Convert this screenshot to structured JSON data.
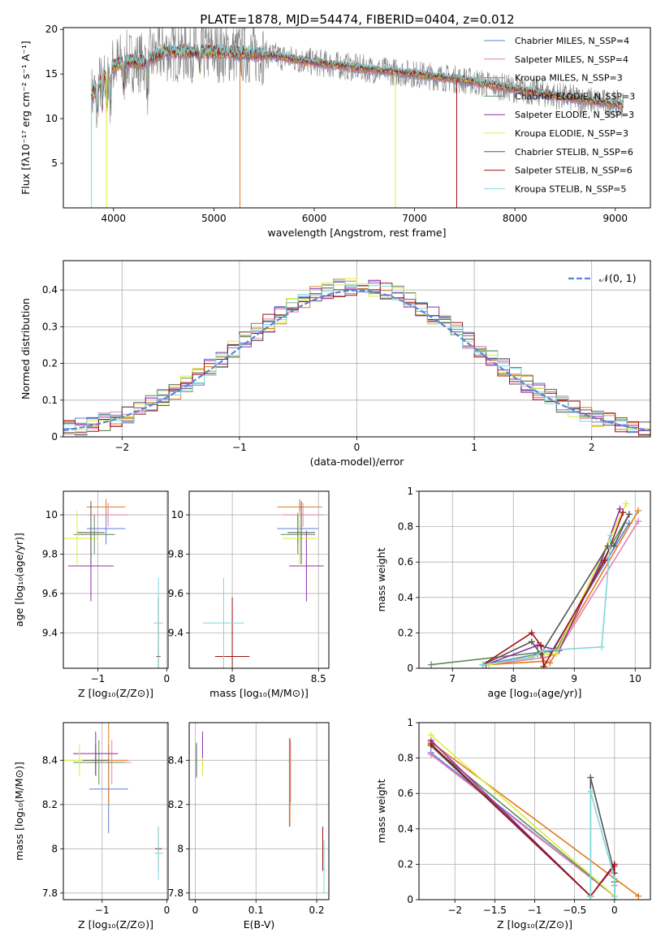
{
  "title": "PLATE=1878, MJD=54474, FIBERID=0404, z=0.012",
  "colors": [
    "#5b7fd6",
    "#e87fb0",
    "#e07a1f",
    "#5f8a5f",
    "#8e2ea8",
    "#dcec3a",
    "#555555",
    "#a01010",
    "#7fd8d8"
  ],
  "chart_data": [
    {
      "id": "spectrum",
      "type": "line",
      "xlabel": "wavelength [Angstrom, rest frame]",
      "ylabel": "Flux [fλ10⁻¹⁷ erg cm⁻² s⁻¹ A⁻¹]",
      "xlim": [
        3500,
        9350
      ],
      "ylim": [
        0,
        20.2
      ],
      "xticks": [
        4000,
        5000,
        6000,
        7000,
        8000,
        9000
      ],
      "yticks": [
        5,
        10,
        15,
        20
      ],
      "legend_position": "upper-right",
      "legend": [
        "Chabrier MILES, N_SSP=4",
        "Salpeter MILES, N_SSP=4",
        "Kroupa MILES, N_SSP=3",
        "Chabrier ELODIE, N_SSP=3",
        "Salpeter ELODIE, N_SSP=3",
        "Kroupa ELODIE, N_SSP=3",
        "Chabrier STELIB, N_SSP=6",
        "Salpeter STELIB, N_SSP=6",
        "Kroupa STELIB, N_SSP=5"
      ],
      "data_trend": {
        "x": [
          3780,
          3950,
          4100,
          4300,
          4500,
          5000,
          5500,
          6000,
          6500,
          7000,
          7500,
          8000,
          8500,
          9080
        ],
        "y": [
          12.5,
          15.5,
          16.5,
          16.3,
          17.5,
          17.5,
          17.2,
          16.3,
          15.6,
          15,
          14.3,
          13.3,
          12.4,
          11.5
        ]
      }
    },
    {
      "id": "residuals",
      "type": "histogram",
      "xlabel": "(data-model)/error",
      "ylabel": "Normed distribution",
      "xlim": [
        -2.5,
        2.5
      ],
      "ylim": [
        0,
        0.48
      ],
      "xticks": [
        -2,
        -1,
        0,
        1,
        2
      ],
      "yticks": [
        0.0,
        0.1,
        0.2,
        0.3,
        0.4
      ],
      "legend": "𝒩(0, 1)",
      "legend_position": "upper-right",
      "grid": true
    },
    {
      "id": "age_vs_Z",
      "type": "errorbar",
      "xlabel": "Z [log₁₀(Z/Z⊙)]",
      "ylabel": "age  [log₁₀(age/yr)]",
      "xlim": [
        -1.5,
        0.02
      ],
      "ylim": [
        9.22,
        10.12
      ],
      "xticks": [
        -1,
        0
      ],
      "yticks": [
        9.4,
        9.6,
        9.8,
        10.0
      ],
      "points": [
        {
          "x": -0.88,
          "y": 9.93,
          "xerr": 0.28,
          "yerr": 0.08
        },
        {
          "x": -0.85,
          "y": 10.0,
          "xerr": 0.28,
          "yerr": 0.06
        },
        {
          "x": -0.88,
          "y": 10.04,
          "xerr": 0.28,
          "yerr": 0.04
        },
        {
          "x": -1.05,
          "y": 9.9,
          "xerr": 0.3,
          "yerr": 0.1
        },
        {
          "x": -1.1,
          "y": 9.74,
          "xerr": 0.33,
          "yerr": 0.18
        },
        {
          "x": -1.3,
          "y": 9.88,
          "xerr": 0.3,
          "yerr": 0.14
        },
        {
          "x": -1.1,
          "y": 9.91,
          "xerr": 0.2,
          "yerr": 0.16
        },
        {
          "x": -0.12,
          "y": 9.28,
          "xerr": 0.03,
          "yerr": 0.3
        },
        {
          "x": -0.12,
          "y": 9.45,
          "xerr": 0.07,
          "yerr": 0.23
        }
      ]
    },
    {
      "id": "age_vs_mass",
      "type": "errorbar",
      "xlabel": "mass [log₁₀(M/M⊙)]",
      "ylabel": "",
      "xlim": [
        7.75,
        8.56
      ],
      "ylim": [
        9.22,
        10.12
      ],
      "xticks": [
        8.0,
        8.5
      ],
      "yticks": [
        9.4,
        9.6,
        9.8,
        10.0
      ],
      "points": [
        {
          "x": 8.38,
          "y": 9.93,
          "xerr": 0.12,
          "yerr": 0.08
        },
        {
          "x": 8.41,
          "y": 10.0,
          "xerr": 0.12,
          "yerr": 0.06
        },
        {
          "x": 8.39,
          "y": 10.04,
          "xerr": 0.13,
          "yerr": 0.04
        },
        {
          "x": 8.38,
          "y": 9.9,
          "xerr": 0.1,
          "yerr": 0.1
        },
        {
          "x": 8.43,
          "y": 9.74,
          "xerr": 0.1,
          "yerr": 0.18
        },
        {
          "x": 8.39,
          "y": 9.88,
          "xerr": 0.1,
          "yerr": 0.14
        },
        {
          "x": 8.4,
          "y": 9.91,
          "xerr": 0.08,
          "yerr": 0.16
        },
        {
          "x": 8.0,
          "y": 9.28,
          "xerr": 0.1,
          "yerr": 0.3
        },
        {
          "x": 7.95,
          "y": 9.45,
          "xerr": 0.12,
          "yerr": 0.23
        }
      ]
    },
    {
      "id": "massweight_vs_age",
      "type": "line",
      "xlabel": "age  [log₁₀(age/yr)]",
      "ylabel": "mass weight",
      "xlim": [
        6.45,
        10.25
      ],
      "ylim": [
        0,
        1.0
      ],
      "xticks": [
        7,
        8,
        9,
        10
      ],
      "yticks": [
        0.0,
        0.2,
        0.4,
        0.6,
        0.8,
        1.0
      ],
      "series": [
        {
          "x": [
            7.5,
            8.4,
            8.6,
            9.9
          ],
          "y": [
            0.02,
            0.08,
            0.08,
            0.82
          ]
        },
        {
          "x": [
            7.6,
            8.5,
            8.7,
            10.05
          ],
          "y": [
            0.02,
            0.06,
            0.08,
            0.83
          ]
        },
        {
          "x": [
            7.6,
            8.5,
            8.6,
            10.05
          ],
          "y": [
            0.02,
            0.04,
            0.03,
            0.89
          ]
        },
        {
          "x": [
            6.65,
            8.7,
            9.6,
            9.9
          ],
          "y": [
            0.02,
            0.1,
            0.69,
            0.87
          ]
        },
        {
          "x": [
            7.55,
            8.4,
            8.75,
            9.45,
            9.75
          ],
          "y": [
            0.02,
            0.13,
            0.1,
            0.61,
            0.9
          ]
        },
        {
          "x": [
            7.6,
            8.5,
            8.7,
            9.85
          ],
          "y": [
            0.02,
            0.08,
            0.08,
            0.93
          ]
        },
        {
          "x": [
            7.5,
            8.3,
            8.45,
            9.55,
            9.65,
            9.9
          ],
          "y": [
            0.02,
            0.15,
            0.08,
            0.69,
            0.69,
            0.87
          ]
        },
        {
          "x": [
            7.5,
            8.3,
            8.45,
            8.5,
            9.5,
            9.8
          ],
          "y": [
            0.02,
            0.2,
            0.13,
            0.01,
            0.61,
            0.88
          ]
        },
        {
          "x": [
            7.5,
            8.3,
            8.5,
            9.45,
            9.6
          ],
          "y": [
            0.02,
            0.06,
            0.1,
            0.12,
            0.75
          ]
        }
      ]
    },
    {
      "id": "mass_vs_Z",
      "type": "errorbar",
      "xlabel": "Z [log₁₀(Z/Z⊙)]",
      "ylabel": "mass [log₁₀(M/M⊙)]",
      "xlim": [
        -1.6,
        0.02
      ],
      "ylim": [
        7.77,
        8.57
      ],
      "xticks": [
        -1,
        0
      ],
      "yticks": [
        7.8,
        8.0,
        8.2,
        8.4
      ],
      "points": [
        {
          "x": -0.9,
          "y": 8.27,
          "xerr": 0.3,
          "yerr": 0.2
        },
        {
          "x": -0.85,
          "y": 8.39,
          "xerr": 0.3,
          "yerr": 0.1
        },
        {
          "x": -0.9,
          "y": 8.4,
          "xerr": 0.3,
          "yerr": 0.2
        },
        {
          "x": -1.05,
          "y": 8.39,
          "xerr": 0.4,
          "yerr": 0.1
        },
        {
          "x": -1.1,
          "y": 8.43,
          "xerr": 0.35,
          "yerr": 0.1
        },
        {
          "x": -1.35,
          "y": 8.4,
          "xerr": 0.3,
          "yerr": 0.07
        },
        {
          "x": -1.1,
          "y": 8.4,
          "xerr": 0.2,
          "yerr": 0.07
        },
        {
          "x": -0.13,
          "y": 8.0,
          "xerr": 0.05,
          "yerr": 0.1
        },
        {
          "x": -0.13,
          "y": 7.98,
          "xerr": 0.07,
          "yerr": 0.12
        }
      ]
    },
    {
      "id": "mass_vs_EBV",
      "type": "errorbar",
      "xlabel": "E(B-V)",
      "ylabel": "",
      "xlim": [
        -0.01,
        0.22
      ],
      "ylim": [
        7.77,
        8.57
      ],
      "xticks": [
        0.0,
        0.1,
        0.2
      ],
      "yticks": [
        7.8,
        8.0,
        8.2,
        8.4
      ],
      "points": [
        {
          "x": 0.155,
          "y": 8.3,
          "xerr": 0,
          "yerr": 0.2
        },
        {
          "x": 0.157,
          "y": 8.35,
          "xerr": 0,
          "yerr": 0.14
        },
        {
          "x": 0.156,
          "y": 8.3,
          "xerr": 0,
          "yerr": 0.2
        },
        {
          "x": 0.002,
          "y": 8.4,
          "xerr": 0,
          "yerr": 0.08
        },
        {
          "x": 0.012,
          "y": 8.45,
          "xerr": 0,
          "yerr": 0.08
        },
        {
          "x": 0.012,
          "y": 8.37,
          "xerr": 0,
          "yerr": 0.04
        },
        {
          "x": 0.002,
          "y": 8.4,
          "xerr": 0,
          "yerr": 0.07
        },
        {
          "x": 0.21,
          "y": 8.0,
          "xerr": 0,
          "yerr": 0.1
        },
        {
          "x": 0.212,
          "y": 7.92,
          "xerr": 0,
          "yerr": 0.12
        }
      ]
    },
    {
      "id": "massweight_vs_Z",
      "type": "line",
      "xlabel": "Z [log₁₀(Z/Z⊙)]",
      "ylabel": "mass weight",
      "xlim": [
        -2.45,
        0.45
      ],
      "ylim": [
        0,
        1.0
      ],
      "xticks": [
        -2.0,
        -1.5,
        -1.0,
        -0.5,
        0.0
      ],
      "yticks": [
        0.0,
        0.2,
        0.4,
        0.6,
        0.8,
        1.0
      ],
      "series": [
        {
          "x": [
            -2.3,
            0.0,
            0.0
          ],
          "y": [
            0.83,
            0.02,
            0.1
          ]
        },
        {
          "x": [
            -2.3,
            0.0,
            0.0
          ],
          "y": [
            0.82,
            0.02,
            0.08
          ]
        },
        {
          "x": [
            -2.3,
            0.3
          ],
          "y": [
            0.89,
            0.02
          ]
        },
        {
          "x": [
            -2.3,
            0.0,
            0.0
          ],
          "y": [
            0.87,
            0.02,
            0.1
          ]
        },
        {
          "x": [
            -2.3,
            -0.3,
            0.0
          ],
          "y": [
            0.9,
            0.02,
            0.19
          ]
        },
        {
          "x": [
            -2.3,
            0.0
          ],
          "y": [
            0.93,
            0.02
          ]
        },
        {
          "x": [
            -2.3,
            -0.3,
            -0.3,
            0.0
          ],
          "y": [
            0.87,
            0.02,
            0.69,
            0.15
          ]
        },
        {
          "x": [
            -2.3,
            -0.3,
            0.0,
            0.0
          ],
          "y": [
            0.88,
            0.02,
            0.2,
            0.0
          ]
        },
        {
          "x": [
            -0.3,
            -0.3,
            0.0,
            0.0
          ],
          "y": [
            0.02,
            0.61,
            0.12,
            0.02
          ]
        }
      ]
    }
  ]
}
